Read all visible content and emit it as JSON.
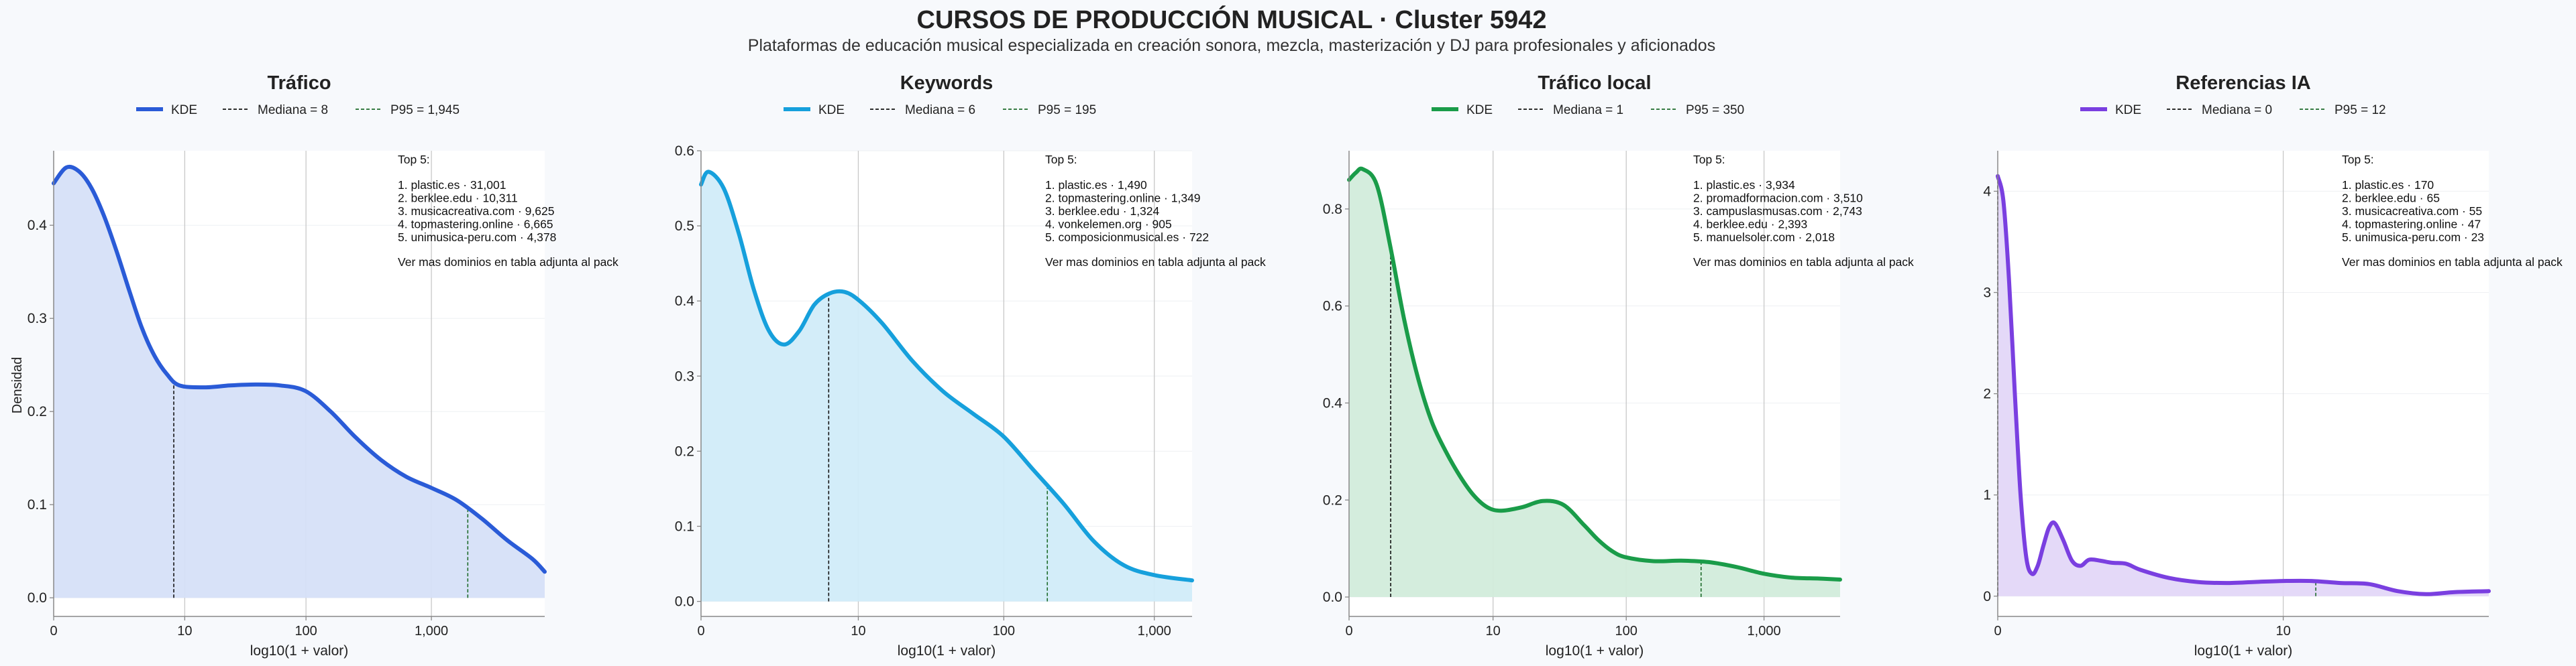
{
  "title": "CURSOS DE PRODUCCIÓN MUSICAL · Cluster 5942",
  "subtitle": "Plataformas de educación musical especializada en creación sonora, mezcla, masterización y DJ para profesionales y aficionados",
  "ylabel": "Densidad",
  "chart_data": [
    {
      "type": "area",
      "title": "Tráfico",
      "color": "#2a5bd7",
      "fill": "#d6e0f8",
      "xlabel": "log10(1 + valor)",
      "xlim": [
        0,
        3.9
      ],
      "ylim": [
        -0.02,
        0.48
      ],
      "xticks": [
        {
          "v": 0,
          "label": "0"
        },
        {
          "v": 1.041,
          "label": "10"
        },
        {
          "v": 2.004,
          "label": "100"
        },
        {
          "v": 3.0,
          "label": "1,000"
        }
      ],
      "yticks": [
        {
          "v": 0,
          "label": "0.0"
        },
        {
          "v": 0.1,
          "label": "0.1"
        },
        {
          "v": 0.2,
          "label": "0.2"
        },
        {
          "v": 0.3,
          "label": "0.3"
        },
        {
          "v": 0.4,
          "label": "0.4"
        }
      ],
      "legend": {
        "kde": "KDE",
        "median": "Mediana = 8",
        "p95": "P95 = 1,945"
      },
      "median_x": 0.954,
      "p95_x": 3.289,
      "x": [
        0,
        0.1,
        0.2,
        0.3,
        0.4,
        0.5,
        0.6,
        0.7,
        0.8,
        0.9,
        1.0,
        1.2,
        1.4,
        1.6,
        1.8,
        2.0,
        2.2,
        2.4,
        2.6,
        2.8,
        3.0,
        3.2,
        3.4,
        3.6,
        3.8,
        3.9
      ],
      "y": [
        0.445,
        0.462,
        0.458,
        0.44,
        0.41,
        0.372,
        0.33,
        0.29,
        0.26,
        0.24,
        0.228,
        0.226,
        0.228,
        0.229,
        0.228,
        0.222,
        0.2,
        0.172,
        0.148,
        0.13,
        0.118,
        0.105,
        0.085,
        0.062,
        0.042,
        0.028
      ],
      "top5": {
        "header": "Top 5:",
        "items": [
          "1. plastic.es · 31,001",
          "2. berklee.edu · 10,311",
          "3. musicacreativa.com · 9,625",
          "4. topmastering.online · 6,665",
          "5. unimusica-peru.com · 4,378"
        ],
        "footer": "Ver mas dominios en tabla adjunta al pack"
      }
    },
    {
      "type": "area",
      "title": "Keywords",
      "color": "#16a0dc",
      "fill": "#d1ecf9",
      "xlabel": "log10(1 + valor)",
      "xlim": [
        0,
        3.25
      ],
      "ylim": [
        -0.02,
        0.6
      ],
      "xticks": [
        {
          "v": 0,
          "label": "0"
        },
        {
          "v": 1.041,
          "label": "10"
        },
        {
          "v": 2.004,
          "label": "100"
        },
        {
          "v": 3.0,
          "label": "1,000"
        }
      ],
      "yticks": [
        {
          "v": 0,
          "label": "0.0"
        },
        {
          "v": 0.1,
          "label": "0.1"
        },
        {
          "v": 0.2,
          "label": "0.2"
        },
        {
          "v": 0.3,
          "label": "0.3"
        },
        {
          "v": 0.4,
          "label": "0.4"
        },
        {
          "v": 0.5,
          "label": "0.5"
        },
        {
          "v": 0.6,
          "label": "0.6"
        }
      ],
      "legend": {
        "kde": "KDE",
        "median": "Mediana = 6",
        "p95": "P95 = 195"
      },
      "median_x": 0.845,
      "p95_x": 2.292,
      "x": [
        0,
        0.05,
        0.15,
        0.25,
        0.35,
        0.45,
        0.55,
        0.65,
        0.75,
        0.85,
        0.95,
        1.05,
        1.2,
        1.4,
        1.6,
        1.8,
        2.0,
        2.2,
        2.4,
        2.6,
        2.8,
        3.0,
        3.25
      ],
      "y": [
        0.555,
        0.572,
        0.55,
        0.49,
        0.415,
        0.36,
        0.342,
        0.36,
        0.395,
        0.41,
        0.412,
        0.4,
        0.37,
        0.32,
        0.28,
        0.25,
        0.22,
        0.175,
        0.13,
        0.08,
        0.048,
        0.035,
        0.028
      ],
      "top5": {
        "header": "Top 5:",
        "items": [
          "1. plastic.es · 1,490",
          "2. topmastering.online · 1,349",
          "3. berklee.edu · 1,324",
          "4. vonkelemen.org · 905",
          "5. composicionmusical.es · 722"
        ],
        "footer": "Ver mas dominios en tabla adjunta al pack"
      }
    },
    {
      "type": "area",
      "title": "Tráfico local",
      "color": "#1a9c49",
      "fill": "#d2ecdb",
      "xlabel": "log10(1 + valor)",
      "xlim": [
        0,
        3.55
      ],
      "ylim": [
        -0.04,
        0.92
      ],
      "xticks": [
        {
          "v": 0,
          "label": "0"
        },
        {
          "v": 1.041,
          "label": "10"
        },
        {
          "v": 2.004,
          "label": "100"
        },
        {
          "v": 3.0,
          "label": "1,000"
        }
      ],
      "yticks": [
        {
          "v": 0,
          "label": "0.0"
        },
        {
          "v": 0.2,
          "label": "0.2"
        },
        {
          "v": 0.4,
          "label": "0.4"
        },
        {
          "v": 0.6,
          "label": "0.6"
        },
        {
          "v": 0.8,
          "label": "0.8"
        }
      ],
      "legend": {
        "kde": "KDE",
        "median": "Mediana = 1",
        "p95": "P95 = 350"
      },
      "median_x": 0.301,
      "p95_x": 2.545,
      "x": [
        0,
        0.05,
        0.1,
        0.2,
        0.3,
        0.4,
        0.5,
        0.6,
        0.7,
        0.8,
        0.9,
        1.0,
        1.1,
        1.25,
        1.4,
        1.55,
        1.7,
        1.8,
        1.9,
        2.0,
        2.2,
        2.4,
        2.6,
        2.8,
        3.0,
        3.2,
        3.4,
        3.55
      ],
      "y": [
        0.86,
        0.875,
        0.882,
        0.85,
        0.72,
        0.57,
        0.45,
        0.36,
        0.3,
        0.25,
        0.21,
        0.185,
        0.178,
        0.185,
        0.198,
        0.19,
        0.148,
        0.118,
        0.095,
        0.082,
        0.074,
        0.075,
        0.072,
        0.062,
        0.048,
        0.04,
        0.038,
        0.036
      ],
      "top5": {
        "header": "Top 5:",
        "items": [
          "1. plastic.es · 3,934",
          "2. promadformacion.com · 3,510",
          "3. campuslasmusas.com · 2,743",
          "4. berklee.edu · 2,393",
          "5. manuelsoler.com · 2,018"
        ],
        "footer": "Ver mas dominios en tabla adjunta al pack"
      }
    },
    {
      "type": "area",
      "title": "Referencias IA",
      "color": "#7a3fe0",
      "fill": "#e3d7f8",
      "xlabel": "log10(1 + valor)",
      "xlim": [
        0,
        1.72
      ],
      "ylim": [
        -0.2,
        4.4
      ],
      "xticks": [
        {
          "v": 0,
          "label": "0"
        },
        {
          "v": 1.0,
          "label": "10"
        }
      ],
      "yticks": [
        {
          "v": 0,
          "label": "0"
        },
        {
          "v": 1,
          "label": "1"
        },
        {
          "v": 2,
          "label": "2"
        },
        {
          "v": 3,
          "label": "3"
        },
        {
          "v": 4,
          "label": "4"
        }
      ],
      "legend": {
        "kde": "KDE",
        "median": "Mediana = 0",
        "p95": "P95 = 12"
      },
      "median_x": 0.0,
      "p95_x": 1.114,
      "x": [
        0,
        0.02,
        0.04,
        0.06,
        0.08,
        0.1,
        0.12,
        0.14,
        0.16,
        0.18,
        0.2,
        0.23,
        0.26,
        0.29,
        0.32,
        0.36,
        0.4,
        0.45,
        0.5,
        0.6,
        0.7,
        0.8,
        0.9,
        1.0,
        1.1,
        1.2,
        1.3,
        1.4,
        1.5,
        1.6,
        1.72
      ],
      "y": [
        4.15,
        3.9,
        3.1,
        2.0,
        1.0,
        0.38,
        0.22,
        0.3,
        0.5,
        0.68,
        0.72,
        0.55,
        0.35,
        0.3,
        0.36,
        0.35,
        0.33,
        0.32,
        0.26,
        0.18,
        0.14,
        0.13,
        0.14,
        0.15,
        0.15,
        0.13,
        0.12,
        0.05,
        0.02,
        0.04,
        0.05
      ],
      "top5": {
        "header": "Top 5:",
        "items": [
          "1. plastic.es · 170",
          "2. berklee.edu · 65",
          "3. musicacreativa.com · 55",
          "4. topmastering.online · 47",
          "5. unimusica-peru.com · 23"
        ],
        "footer": "Ver mas dominios en tabla adjunta al pack"
      }
    }
  ]
}
